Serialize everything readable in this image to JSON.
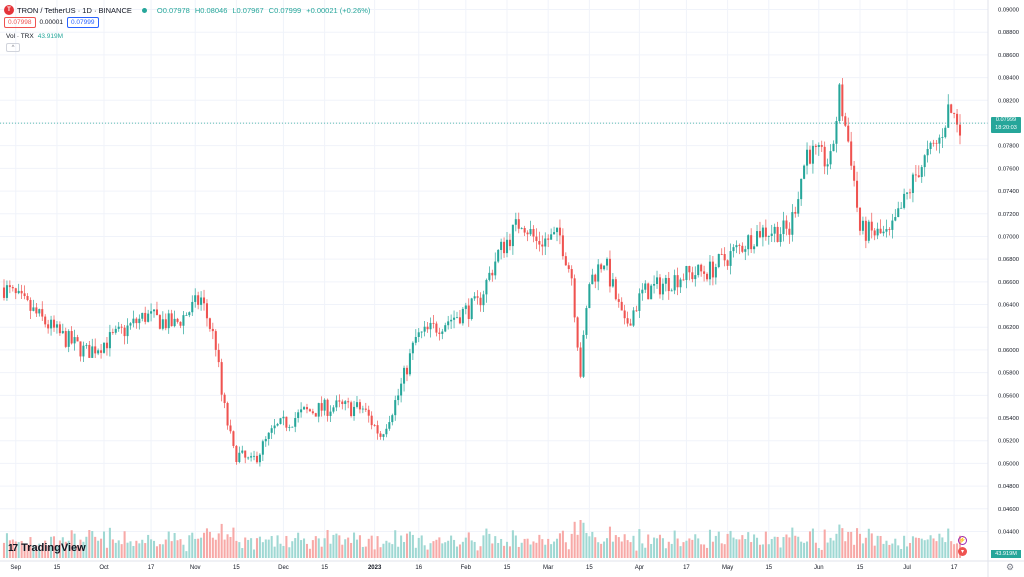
{
  "header": {
    "logo_letter": "T",
    "title": "TRON / TetherUS · 1D · BINANCE",
    "open": "O0.07978",
    "high": "H0.08046",
    "low": "L0.07967",
    "close": "C0.07999",
    "change": "+0.00021 (+0.26%)"
  },
  "quote": {
    "bid": "0.07998",
    "spread": "0.00001",
    "ask": "0.07999"
  },
  "volume_legend": {
    "label": "Vol · TRX",
    "value": "43.919M"
  },
  "collapse_label": "^",
  "brand": {
    "mark": "17",
    "name": "TradingView"
  },
  "price_scale": {
    "ticks": [
      "0.09000",
      "0.08800",
      "0.08600",
      "0.08400",
      "0.08200",
      "0.08000",
      "0.07800",
      "0.07600",
      "0.07400",
      "0.07200",
      "0.07000",
      "0.06800",
      "0.06600",
      "0.06400",
      "0.06200",
      "0.06000",
      "0.05800",
      "0.05600",
      "0.05400",
      "0.05200",
      "0.05000",
      "0.04800",
      "0.04600",
      "0.04400"
    ],
    "last_price": "0.07999",
    "countdown": "18:20:03",
    "volume_tag": "43.919M"
  },
  "time_scale": {
    "labels": [
      "Sep",
      "15",
      "Oct",
      "17",
      "Nov",
      "15",
      "Dec",
      "15",
      "2023",
      "16",
      "Feb",
      "15",
      "Mar",
      "15",
      "Apr",
      "17",
      "May",
      "15",
      "Jun",
      "15",
      "Jul",
      "17"
    ]
  },
  "colors": {
    "up": "#26a69a",
    "down": "#ef5350",
    "up_vol": "#9fd8d3",
    "down_vol": "#f7a9a7",
    "grid": "#f0f3fa"
  },
  "chart_data": {
    "type": "candlestick",
    "symbol": "TRXUSDT",
    "interval": "1D",
    "ylim": [
      0.0425,
      0.0908
    ],
    "anchors": [
      [
        "2022-08-28",
        0.0655
      ],
      [
        "2022-09-05",
        0.0638
      ],
      [
        "2022-09-15",
        0.0615
      ],
      [
        "2022-09-25",
        0.0598
      ],
      [
        "2022-10-05",
        0.0612
      ],
      [
        "2022-10-15",
        0.063
      ],
      [
        "2022-10-25",
        0.0622
      ],
      [
        "2022-11-03",
        0.0645
      ],
      [
        "2022-11-08",
        0.0605
      ],
      [
        "2022-11-10",
        0.056
      ],
      [
        "2022-11-14",
        0.051
      ],
      [
        "2022-11-20",
        0.05
      ],
      [
        "2022-11-28",
        0.053
      ],
      [
        "2022-12-08",
        0.0545
      ],
      [
        "2022-12-18",
        0.055
      ],
      [
        "2022-12-28",
        0.0548
      ],
      [
        "2023-01-03",
        0.0525
      ],
      [
        "2023-01-09",
        0.056
      ],
      [
        "2023-01-15",
        0.061
      ],
      [
        "2023-01-25",
        0.0625
      ],
      [
        "2023-02-05",
        0.064
      ],
      [
        "2023-02-12",
        0.0685
      ],
      [
        "2023-02-20",
        0.0715
      ],
      [
        "2023-02-25",
        0.0695
      ],
      [
        "2023-03-05",
        0.07
      ],
      [
        "2023-03-09",
        0.0665
      ],
      [
        "2023-03-12",
        0.058
      ],
      [
        "2023-03-15",
        0.066
      ],
      [
        "2023-03-20",
        0.068
      ],
      [
        "2023-03-27",
        0.062
      ],
      [
        "2023-04-02",
        0.065
      ],
      [
        "2023-04-15",
        0.0665
      ],
      [
        "2023-04-25",
        0.067
      ],
      [
        "2023-05-05",
        0.069
      ],
      [
        "2023-05-12",
        0.0705
      ],
      [
        "2023-05-22",
        0.0705
      ],
      [
        "2023-05-28",
        0.0775
      ],
      [
        "2023-06-05",
        0.0765
      ],
      [
        "2023-06-08",
        0.0825
      ],
      [
        "2023-06-12",
        0.077
      ],
      [
        "2023-06-15",
        0.0705
      ],
      [
        "2023-06-25",
        0.07
      ],
      [
        "2023-07-05",
        0.076
      ],
      [
        "2023-07-12",
        0.0785
      ],
      [
        "2023-07-15",
        0.0812
      ],
      [
        "2023-07-19",
        0.08
      ]
    ]
  }
}
